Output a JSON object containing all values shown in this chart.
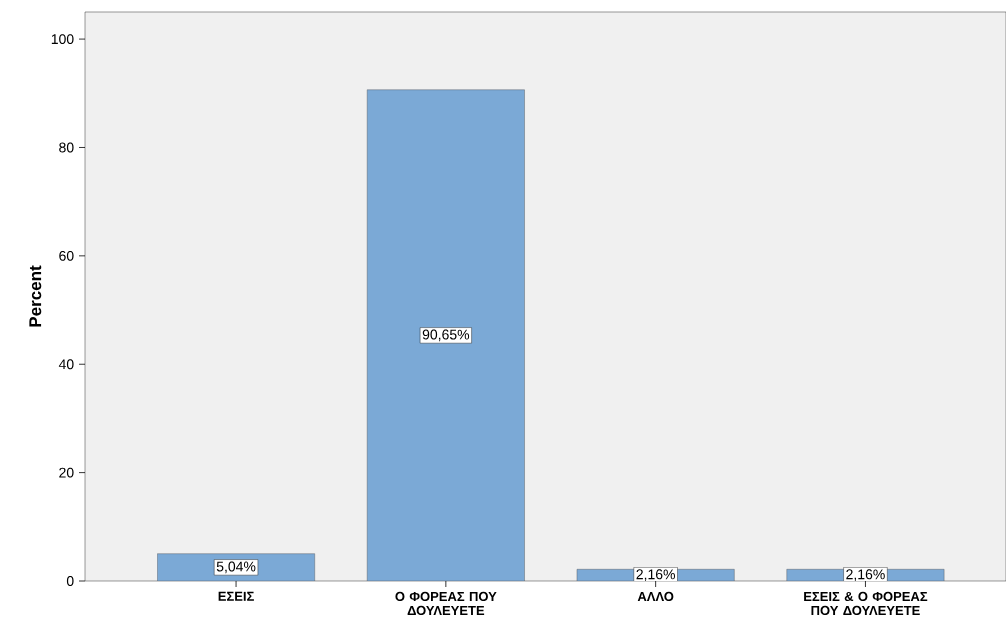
{
  "chart_data": {
    "type": "bar",
    "ylabel": "Percent",
    "categories": [
      "ΕΣΕΙΣ",
      "Ο ΦΟΡΕΑΣ ΠΟΥ ΔΟΥΛΕΥΕΤΕ",
      "ΑΛΛΟ",
      "ΕΣΕΙΣ & Ο ΦΟΡΕΑΣ ΠΟΥ ΔΟΥΛΕΥΕΤΕ"
    ],
    "values": [
      5.04,
      90.65,
      2.16,
      2.16
    ],
    "value_labels": [
      "5,04%",
      "90,65%",
      "2,16%",
      "2,16%"
    ],
    "color": "#7ba9d6",
    "ylim": [
      0,
      105
    ],
    "yticks": [
      0,
      20,
      40,
      60,
      80,
      100
    ]
  }
}
